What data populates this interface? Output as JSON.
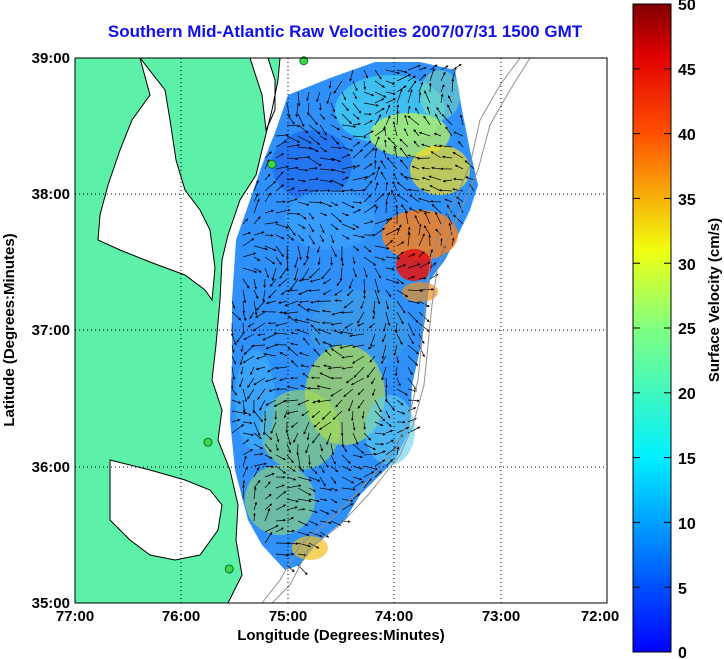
{
  "title": "Southern Mid-Atlantic Raw Velocities 2007/07/31 1500 GMT",
  "x_axis": {
    "label": "Longitude (Degrees:Minutes)",
    "ticks": [
      "77:00",
      "76:00",
      "75:00",
      "74:00",
      "73:00",
      "72:00"
    ]
  },
  "y_axis": {
    "label": "Latitude (Degrees:Minutes)",
    "ticks": [
      "39:00",
      "38:00",
      "37:00",
      "36:00",
      "35:00"
    ]
  },
  "colorbar": {
    "label": "Surface Velocity (cm/s)",
    "ticks": [
      "50",
      "45",
      "40",
      "35",
      "30",
      "25",
      "20",
      "15",
      "10",
      "5",
      "0"
    ],
    "range": [
      0,
      50
    ],
    "colormap": "jet"
  },
  "chart_data": {
    "type": "map",
    "xlim_degrees_west": [
      77,
      72
    ],
    "ylim_degrees_north": [
      35,
      39
    ],
    "grid": "dotted",
    "colors": {
      "land": "#5cf0a8",
      "title": "#1010e8",
      "station": "#3ad84a"
    },
    "stations": [
      {
        "lon": -74.85,
        "lat": 38.98
      },
      {
        "lon": -75.15,
        "lat": 38.22
      },
      {
        "lon": -75.75,
        "lat": 36.18
      },
      {
        "lon": -75.55,
        "lat": 35.25
      }
    ]
  }
}
